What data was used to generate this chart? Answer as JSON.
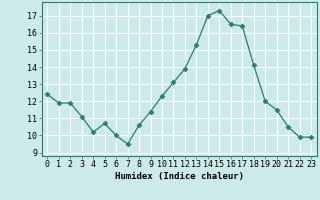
{
  "x": [
    0,
    1,
    2,
    3,
    4,
    5,
    6,
    7,
    8,
    9,
    10,
    11,
    12,
    13,
    14,
    15,
    16,
    17,
    18,
    19,
    20,
    21,
    22,
    23
  ],
  "y": [
    12.4,
    11.9,
    11.9,
    11.1,
    10.2,
    10.7,
    10.0,
    9.5,
    10.6,
    11.4,
    12.3,
    13.1,
    13.9,
    15.3,
    17.0,
    17.3,
    16.5,
    16.4,
    14.1,
    12.0,
    11.5,
    10.5,
    9.9,
    9.9
  ],
  "line_color": "#2d7d6e",
  "marker": "D",
  "marker_size": 2.5,
  "bg_color": "#cceae7",
  "grid_color": "#ffffff",
  "xlabel": "Humidex (Indice chaleur)",
  "xlim": [
    -0.5,
    23.5
  ],
  "ylim": [
    8.8,
    17.8
  ],
  "yticks": [
    9,
    10,
    11,
    12,
    13,
    14,
    15,
    16,
    17
  ],
  "xtick_labels": [
    "0",
    "1",
    "2",
    "3",
    "4",
    "5",
    "6",
    "7",
    "8",
    "9",
    "10",
    "11",
    "12",
    "13",
    "14",
    "15",
    "16",
    "17",
    "18",
    "19",
    "20",
    "21",
    "22",
    "23"
  ],
  "axis_fontsize": 6.5,
  "tick_fontsize": 6.0
}
